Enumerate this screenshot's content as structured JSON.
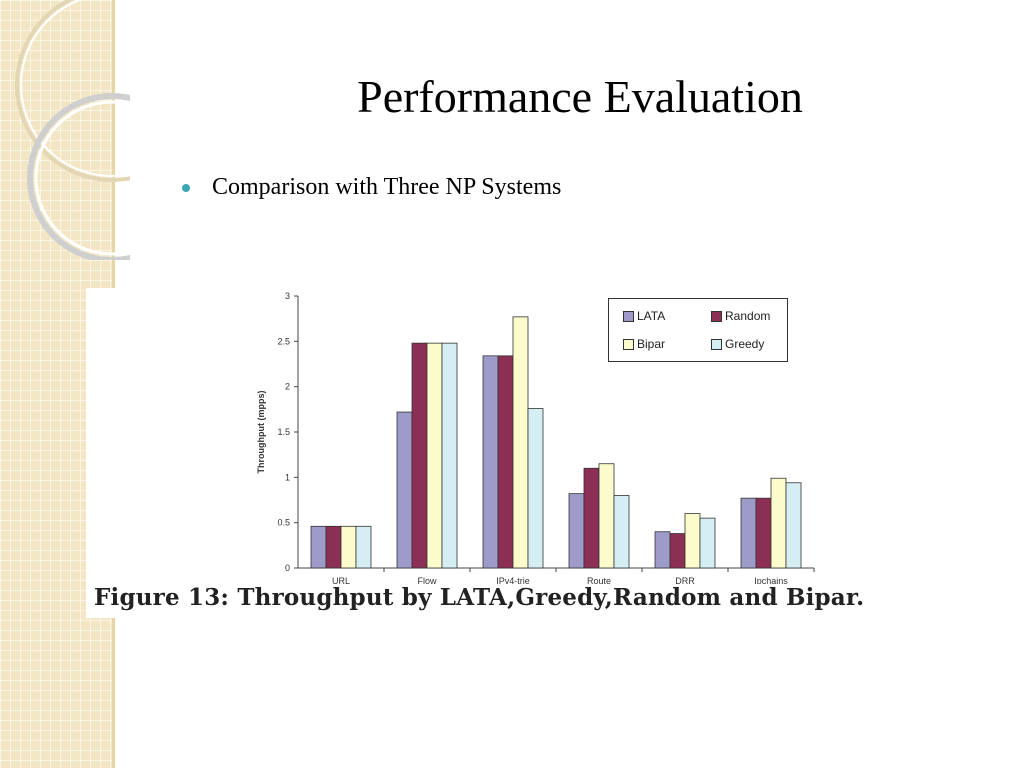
{
  "slide": {
    "title": "Performance Evaluation",
    "bullet": "Comparison with Three NP Systems"
  },
  "figure": {
    "caption": "Figure 13:  Throughput by LATA,Greedy,Random and Bipar."
  },
  "colors": {
    "bullet": "#3aa6b6",
    "side_band": "#f2e6c4",
    "LATA": "#9d9bc9",
    "Random": "#8c2f55",
    "Bipar": "#fcfbcc",
    "Greedy": "#d4eef3"
  },
  "chart_data": {
    "type": "bar",
    "title": "",
    "xlabel": "",
    "ylabel": "Throughput (mpps)",
    "ylim": [
      0,
      3
    ],
    "yticks": [
      "0",
      "0.5",
      "1",
      "1.5",
      "2",
      "2.5",
      "3"
    ],
    "categories": [
      "URL",
      "Flow",
      "IPv4-trie",
      "Route",
      "DRR",
      "Ipchains"
    ],
    "series": [
      {
        "name": "LATA",
        "values": [
          0.46,
          1.72,
          2.34,
          0.82,
          0.4,
          0.77
        ]
      },
      {
        "name": "Random",
        "values": [
          0.46,
          2.48,
          2.34,
          1.1,
          0.38,
          0.77
        ]
      },
      {
        "name": "Bipar",
        "values": [
          0.46,
          2.48,
          2.77,
          1.15,
          0.6,
          0.99
        ]
      },
      {
        "name": "Greedy",
        "values": [
          0.46,
          2.48,
          1.76,
          0.8,
          0.55,
          0.94
        ]
      }
    ],
    "legend_position": "top-right",
    "grid": false
  }
}
